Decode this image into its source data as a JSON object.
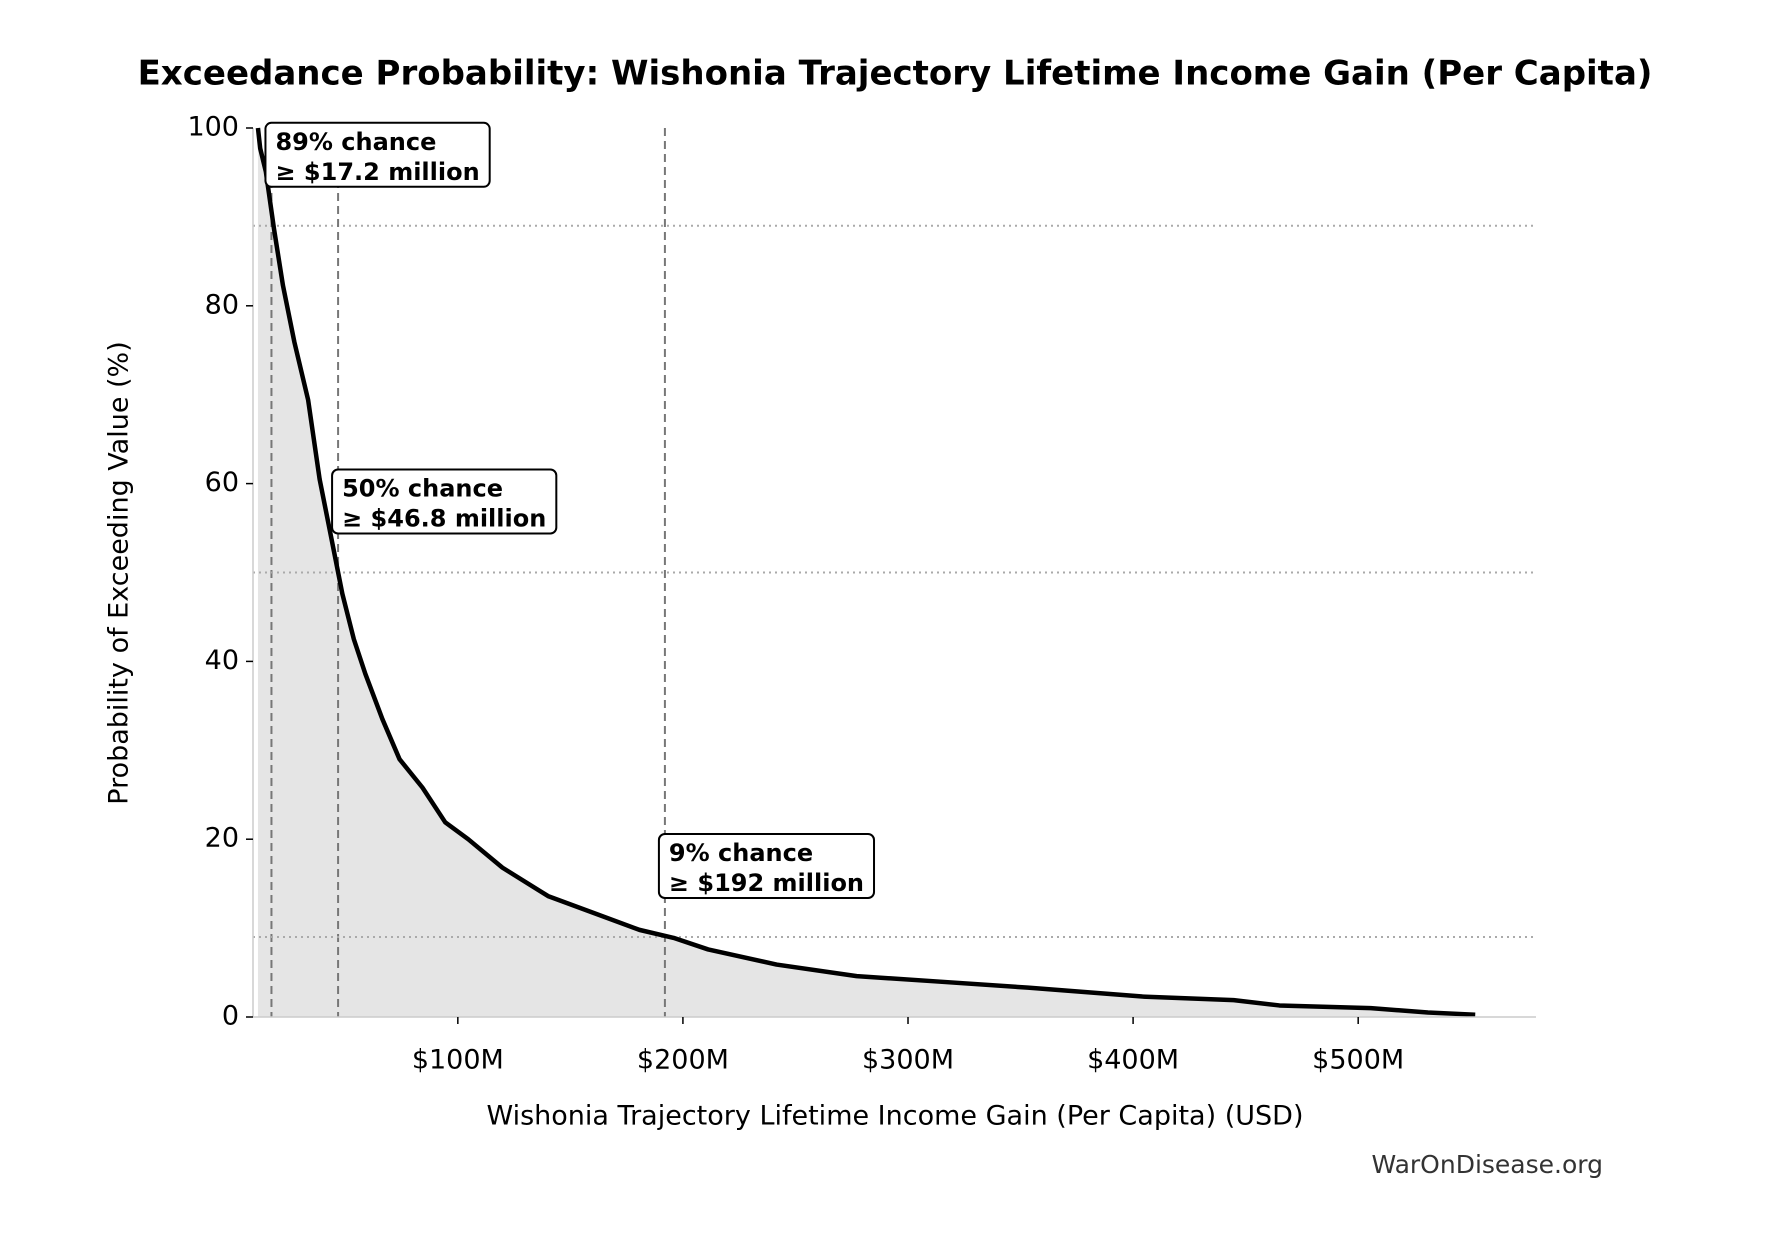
{
  "chart_data": {
    "type": "line",
    "title": "Exceedance Probability: Wishonia Trajectory Lifetime Income Gain (Per Capita)",
    "x_label": "Wishonia Trajectory Lifetime Income Gain (Per Capita) (USD)",
    "y_label": "Probability of Exceeding Value (%)",
    "source": "WarOnDisease.org",
    "xlim": [
      9000000,
      579000000
    ],
    "xticks": [
      {
        "value": 100000000,
        "label": "$100M"
      },
      {
        "value": 200000000,
        "label": "$200M"
      },
      {
        "value": 300000000,
        "label": "$300M"
      },
      {
        "value": 400000000,
        "label": "$400M"
      },
      {
        "value": 500000000,
        "label": "$500M"
      }
    ],
    "ylim": [
      0,
      100
    ],
    "yticks": [
      0,
      20,
      40,
      60,
      80,
      100
    ],
    "fill_color": "#e5e5e5",
    "series": [
      {
        "color": "#000000",
        "x": [
          11200000,
          12200000,
          14700000,
          18300000,
          22300000,
          27400000,
          33500000,
          38600000,
          43700000,
          48700000,
          53800000,
          58900000,
          66500000,
          74100000,
          84300000,
          94400000,
          104600000,
          119800000,
          140100000,
          160400000,
          180700000,
          195900000,
          211200000,
          241600000,
          277200000,
          312700000,
          353300000,
          404100000,
          444700000,
          465000000,
          505600000,
          531000000,
          552000000
        ],
        "values": [
          100,
          97.7,
          95.1,
          88.7,
          82.3,
          75.9,
          69.4,
          60.5,
          54,
          47.6,
          42.5,
          38.6,
          33.5,
          29,
          25.8,
          21.9,
          20,
          16.8,
          13.6,
          11.7,
          9.8,
          8.9,
          7.6,
          5.9,
          4.6,
          4,
          3.3,
          2.3,
          1.9,
          1.3,
          1.0,
          0.5,
          0.26
        ]
      }
    ],
    "annotations": [
      {
        "x": 17200000,
        "y": 89,
        "lines": [
          "89% chance",
          "≥ $17.2 million"
        ]
      },
      {
        "x": 46800000,
        "y": 50,
        "lines": [
          "50% chance",
          "≥ $46.8 million"
        ]
      },
      {
        "x": 192000000,
        "y": 9,
        "lines": [
          "9% chance",
          "≥ $192 million"
        ]
      }
    ]
  }
}
